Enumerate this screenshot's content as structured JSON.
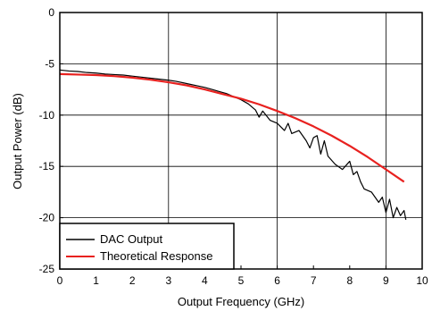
{
  "chart_data": {
    "type": "line",
    "xlabel": "Output Frequency (GHz)",
    "ylabel": "Output Power (dB)",
    "xlim": [
      0,
      10
    ],
    "ylim": [
      -25,
      0
    ],
    "x_ticks": [
      0,
      1,
      2,
      3,
      4,
      5,
      6,
      7,
      8,
      9,
      10
    ],
    "y_ticks": [
      0,
      -5,
      -10,
      -15,
      -20,
      -25
    ],
    "x_tick_labels": [
      "0",
      "1",
      "2",
      "3",
      "4",
      "5",
      "6",
      "7",
      "8",
      "9",
      "10"
    ],
    "y_tick_labels": [
      "0",
      "-5",
      "-10",
      "-15",
      "-20",
      "-25"
    ],
    "grid_x": [
      3,
      6,
      9
    ],
    "grid_y": [
      -5,
      -10,
      -15,
      -20
    ],
    "legend_placement": "bottom-left",
    "series": [
      {
        "name": "DAC Output",
        "color": "#000000",
        "x": [
          0,
          0.25,
          0.5,
          0.75,
          1.0,
          1.25,
          1.5,
          1.75,
          2.0,
          2.25,
          2.5,
          2.75,
          3.0,
          3.2,
          3.4,
          3.6,
          3.8,
          4.0,
          4.2,
          4.4,
          4.6,
          4.8,
          5.0,
          5.2,
          5.4,
          5.5,
          5.6,
          5.8,
          6.0,
          6.2,
          6.3,
          6.4,
          6.6,
          6.8,
          6.9,
          7.0,
          7.1,
          7.2,
          7.3,
          7.4,
          7.6,
          7.8,
          8.0,
          8.1,
          8.2,
          8.3,
          8.4,
          8.6,
          8.8,
          8.9,
          9.0,
          9.1,
          9.2,
          9.3,
          9.4,
          9.5,
          9.55
        ],
        "y": [
          -5.6,
          -5.7,
          -5.75,
          -5.85,
          -5.9,
          -6.0,
          -6.05,
          -6.1,
          -6.2,
          -6.3,
          -6.4,
          -6.5,
          -6.6,
          -6.7,
          -6.85,
          -7.0,
          -7.15,
          -7.3,
          -7.5,
          -7.7,
          -7.9,
          -8.2,
          -8.5,
          -8.9,
          -9.5,
          -10.2,
          -9.6,
          -10.5,
          -10.8,
          -11.5,
          -10.8,
          -11.8,
          -11.5,
          -12.5,
          -13.2,
          -12.2,
          -12.0,
          -13.8,
          -12.5,
          -14.0,
          -14.8,
          -15.3,
          -14.5,
          -15.8,
          -15.5,
          -16.5,
          -17.2,
          -17.5,
          -18.5,
          -18.0,
          -19.5,
          -18.2,
          -20.0,
          -19.0,
          -19.8,
          -19.3,
          -20.2
        ]
      },
      {
        "name": "Theoretical Response",
        "color": "#e8211f",
        "x": [
          0,
          0.5,
          1.0,
          1.5,
          2.0,
          2.5,
          3.0,
          3.5,
          4.0,
          4.5,
          5.0,
          5.5,
          6.0,
          6.5,
          7.0,
          7.5,
          8.0,
          8.5,
          9.0,
          9.5
        ],
        "y": [
          -6.0,
          -6.05,
          -6.1,
          -6.2,
          -6.35,
          -6.55,
          -6.8,
          -7.1,
          -7.5,
          -7.95,
          -8.4,
          -8.95,
          -9.6,
          -10.3,
          -11.1,
          -12.0,
          -13.0,
          -14.1,
          -15.3,
          -16.5
        ]
      }
    ]
  }
}
